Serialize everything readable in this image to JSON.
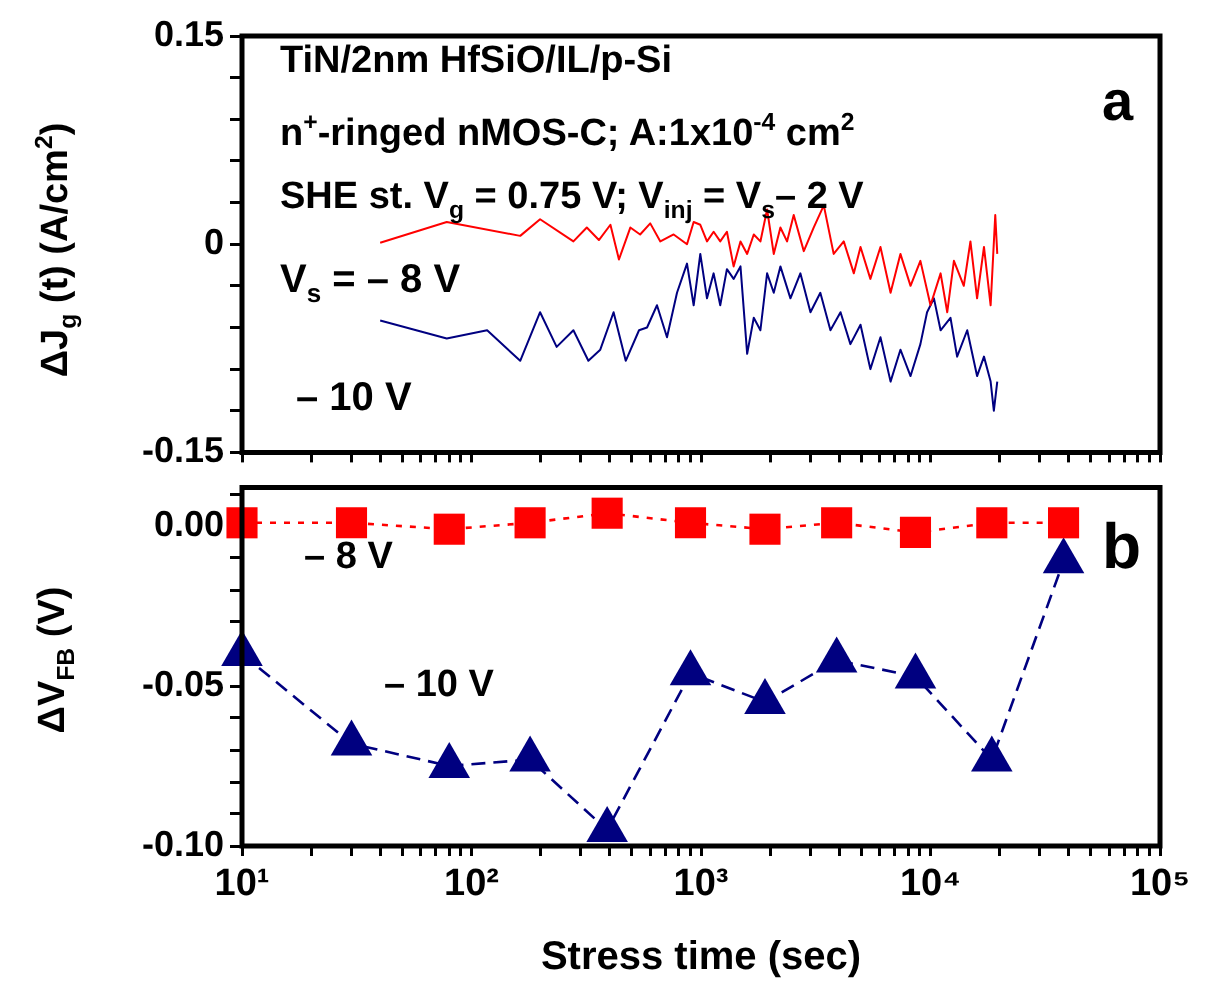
{
  "chart_data": [
    {
      "type": "line",
      "ylabel": "ΔJ$_{g}$ (t) (A/cm$^{2}$)",
      "log": "x",
      "tick_labels": "y",
      "legend": false,
      "marker": "none",
      "line_style": "solid",
      "annotations": [
        "TiN/2nm HfSiO/IL/p-Si",
        "n$^{+}$-ringed nMOS-C; A:1x10$^{-4}$ cm$^{2}$",
        "SHE st. V$_{g}$ = 0.75 V;  V$_{inj}$ = V$_{s}$– 2 V",
        "a"
      ],
      "xlim": [
        10,
        100000
      ],
      "xticks": [
        {
          "value": 10,
          "label": null
        },
        {
          "value": 20,
          "label": null
        },
        {
          "value": 30,
          "label": null
        },
        {
          "value": 40,
          "label": null
        },
        {
          "value": 50,
          "label": null
        },
        {
          "value": 60,
          "label": null
        },
        {
          "value": 70,
          "label": null
        },
        {
          "value": 80,
          "label": null
        },
        {
          "value": 90,
          "label": null
        },
        {
          "value": 100,
          "label": null
        },
        {
          "value": 200,
          "label": null
        },
        {
          "value": 300,
          "label": null
        },
        {
          "value": 400,
          "label": null
        },
        {
          "value": 500,
          "label": null
        },
        {
          "value": 600,
          "label": null
        },
        {
          "value": 700,
          "label": null
        },
        {
          "value": 800,
          "label": null
        },
        {
          "value": 900,
          "label": null
        },
        {
          "value": 1000,
          "label": null
        },
        {
          "value": 2000,
          "label": null
        },
        {
          "value": 3000,
          "label": null
        },
        {
          "value": 4000,
          "label": null
        },
        {
          "value": 5000,
          "label": null
        },
        {
          "value": 6000,
          "label": null
        },
        {
          "value": 7000,
          "label": null
        },
        {
          "value": 8000,
          "label": null
        },
        {
          "value": 9000,
          "label": null
        },
        {
          "value": 10000,
          "label": null
        },
        {
          "value": 20000,
          "label": null
        },
        {
          "value": 30000,
          "label": null
        },
        {
          "value": 40000,
          "label": null
        },
        {
          "value": 50000,
          "label": null
        },
        {
          "value": 60000,
          "label": null
        },
        {
          "value": 70000,
          "label": null
        },
        {
          "value": 80000,
          "label": null
        },
        {
          "value": 90000,
          "label": null
        },
        {
          "value": 100000,
          "label": null
        }
      ],
      "ylim": [
        -0.15,
        0.15
      ],
      "yticks": [
        -0.15,
        {
          "value": -0.12,
          "label": null
        },
        {
          "value": -0.09,
          "label": null
        },
        {
          "value": -0.06,
          "label": null
        },
        {
          "value": -0.03,
          "label": null
        },
        0,
        {
          "value": 0.03,
          "label": null
        },
        {
          "value": 0.06,
          "label": null
        },
        {
          "value": 0.09,
          "label": null
        },
        {
          "value": 0.12,
          "label": null
        },
        0.15
      ],
      "series": [
        {
          "name": "V$_{s}$ = – 8 V",
          "color": "#ff0000",
          "x": [
            40,
            78,
            163,
            199,
            278,
            318,
            359,
            403,
            439,
            492,
            543,
            601,
            665,
            760,
            869,
            929,
            993,
            1062,
            1135,
            1213,
            1297,
            1387,
            1486,
            1589,
            1698,
            1815,
            1941,
            2075,
            2218,
            2371,
            2535,
            2805,
            3097,
            3428,
            3785,
            4188,
            4634,
            4955,
            5470,
            6053,
            6699,
            7396,
            8185,
            9036,
            10000,
            11066,
            11830,
            12647,
            13966,
            14928,
            15958,
            17100,
            18281,
            19150,
            19540
          ],
          "values": [
            0.001,
            0.016,
            0.006,
            0.018,
            0.002,
            0.012,
            0.003,
            0.014,
            -0.011,
            0.012,
            0.007,
            0.015,
            0.002,
            0.007,
            0,
            0.016,
            0.014,
            0.002,
            0.009,
            0.002,
            0.009,
            -0.016,
            0.002,
            -0.007,
            0.007,
            0.002,
            0.025,
            -0.007,
            0.012,
            0.002,
            0.021,
            -0.005,
            0.012,
            0.028,
            -0.007,
            0.002,
            -0.021,
            -0.002,
            -0.025,
            -0.002,
            -0.035,
            -0.007,
            -0.03,
            -0.012,
            -0.044,
            -0.021,
            -0.049,
            -0.012,
            -0.03,
            0.002,
            -0.039,
            -0.002,
            -0.044,
            0.021,
            -0.007
          ]
        },
        {
          "name": "– 10 V",
          "color": "#000080",
          "x": [
            40,
            78,
            117,
            163,
            199,
            235,
            278,
            323,
            364,
            416,
            470,
            537,
            582,
            643,
            711,
            786,
            869,
            929,
            993,
            1062,
            1135,
            1213,
            1297,
            1387,
            1486,
            1589,
            1698,
            1815,
            1941,
            2075,
            2218,
            2453,
            2710,
            2999,
            3311,
            3664,
            4055,
            4477,
            4955,
            5470,
            6053,
            6699,
            7396,
            8185,
            9036,
            9661,
            10350,
            11066,
            12218,
            13062,
            14454,
            15958,
            17100,
            18281,
            18880,
            19540
          ],
          "values": [
            -0.055,
            -0.068,
            -0.062,
            -0.084,
            -0.049,
            -0.074,
            -0.062,
            -0.084,
            -0.076,
            -0.049,
            -0.084,
            -0.062,
            -0.06,
            -0.044,
            -0.067,
            -0.035,
            -0.014,
            -0.044,
            -0.007,
            -0.039,
            -0.021,
            -0.044,
            -0.018,
            -0.025,
            -0.016,
            -0.079,
            -0.053,
            -0.062,
            -0.021,
            -0.035,
            -0.016,
            -0.039,
            -0.021,
            -0.049,
            -0.035,
            -0.062,
            -0.049,
            -0.072,
            -0.058,
            -0.09,
            -0.067,
            -0.099,
            -0.076,
            -0.095,
            -0.072,
            -0.049,
            -0.039,
            -0.062,
            -0.053,
            -0.081,
            -0.062,
            -0.095,
            -0.081,
            -0.099,
            -0.12,
            -0.099
          ]
        }
      ]
    },
    {
      "type": "line",
      "ylabel": "ΔV$_{FB}$ (V)",
      "xlabel": "Stress time (sec)",
      "log": "x",
      "legend": false,
      "annotations": [
        "b"
      ],
      "xlim": [
        10,
        100000
      ],
      "xticks": [
        {
          "value": 10,
          "label": "10¹"
        },
        {
          "value": 20,
          "label": null
        },
        {
          "value": 30,
          "label": null
        },
        {
          "value": 40,
          "label": null
        },
        {
          "value": 50,
          "label": null
        },
        {
          "value": 60,
          "label": null
        },
        {
          "value": 70,
          "label": null
        },
        {
          "value": 80,
          "label": null
        },
        {
          "value": 90,
          "label": null
        },
        {
          "value": 100,
          "label": "10²"
        },
        {
          "value": 200,
          "label": null
        },
        {
          "value": 300,
          "label": null
        },
        {
          "value": 400,
          "label": null
        },
        {
          "value": 500,
          "label": null
        },
        {
          "value": 600,
          "label": null
        },
        {
          "value": 700,
          "label": null
        },
        {
          "value": 800,
          "label": null
        },
        {
          "value": 900,
          "label": null
        },
        {
          "value": 1000,
          "label": "10³"
        },
        {
          "value": 2000,
          "label": null
        },
        {
          "value": 3000,
          "label": null
        },
        {
          "value": 4000,
          "label": null
        },
        {
          "value": 5000,
          "label": null
        },
        {
          "value": 6000,
          "label": null
        },
        {
          "value": 7000,
          "label": null
        },
        {
          "value": 8000,
          "label": null
        },
        {
          "value": 9000,
          "label": null
        },
        {
          "value": 10000,
          "label": "10⁴"
        },
        {
          "value": 20000,
          "label": null
        },
        {
          "value": 30000,
          "label": null
        },
        {
          "value": 40000,
          "label": null
        },
        {
          "value": 50000,
          "label": null
        },
        {
          "value": 60000,
          "label": null
        },
        {
          "value": 70000,
          "label": null
        },
        {
          "value": 80000,
          "label": null
        },
        {
          "value": 90000,
          "label": null
        },
        {
          "value": 100000,
          "label": "10⁵"
        }
      ],
      "ylim": [
        -0.1,
        0.012
      ],
      "yticks": [
        {
          "value": -0.1,
          "label": "-0.10"
        },
        {
          "value": -0.09,
          "label": null
        },
        {
          "value": -0.08,
          "label": null
        },
        {
          "value": -0.07,
          "label": null
        },
        {
          "value": -0.06,
          "label": null
        },
        {
          "value": -0.05,
          "label": "-0.05"
        },
        {
          "value": -0.04,
          "label": null
        },
        {
          "value": -0.03,
          "label": null
        },
        {
          "value": -0.02,
          "label": null
        },
        {
          "value": -0.01,
          "label": null
        },
        {
          "value": 0,
          "label": "0.00"
        },
        {
          "value": 0.01,
          "label": null
        }
      ],
      "series": [
        {
          "name": "– 8 V",
          "color": "#ff0000",
          "marker": "square",
          "line_style": "dotted",
          "x": [
            10,
            30,
            80,
            180,
            390,
            900,
            1900,
            3900,
            8600,
            18500,
            38000
          ],
          "values": [
            0.001,
            0.001,
            -0.001,
            0.001,
            0.004,
            0.001,
            -0.001,
            0.001,
            -0.002,
            0.001,
            0.001
          ]
        },
        {
          "name": "– 10 V",
          "color": "#000080",
          "marker": "triangle",
          "line_style": "dashed",
          "x": [
            10,
            30,
            80,
            180,
            390,
            900,
            1900,
            3900,
            8600,
            18500,
            38000
          ],
          "values": [
            -0.04,
            -0.068,
            -0.075,
            -0.073,
            -0.095,
            -0.046,
            -0.055,
            -0.042,
            -0.047,
            -0.073,
            -0.011
          ]
        }
      ]
    }
  ]
}
